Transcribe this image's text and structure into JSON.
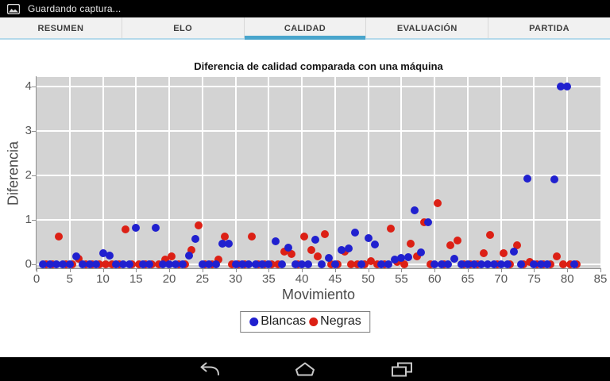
{
  "status_bar": {
    "text": "Guardando captura...",
    "icon": "screenshot-icon"
  },
  "tabs": [
    {
      "label": "RESUMEN",
      "active": false
    },
    {
      "label": "ELO",
      "active": false
    },
    {
      "label": "CALIDAD",
      "active": true
    },
    {
      "label": "EVALUACIÓN",
      "active": false
    },
    {
      "label": "PARTIDA",
      "active": false
    }
  ],
  "colors": {
    "active_tab_underline": "#49a5cc",
    "plot_background": "#d3d3d3",
    "gridline": "#ffffff",
    "blancas": "#2020cf",
    "negras": "#dc2015",
    "status_bar_bg": "#000000",
    "nav_icon": "#c8c8c8"
  },
  "chart_data": {
    "type": "scatter",
    "title": "Diferencia de calidad comparada con una máquina",
    "xlabel": "Movimiento",
    "ylabel": "Diferencia",
    "xlim": [
      0,
      85
    ],
    "ylim": [
      0,
      4.2
    ],
    "x_ticks": [
      0,
      5,
      10,
      15,
      20,
      25,
      30,
      35,
      40,
      45,
      50,
      55,
      60,
      65,
      70,
      75,
      80,
      85
    ],
    "y_ticks": [
      0,
      1,
      2,
      3,
      4
    ],
    "grid": true,
    "legend_position": "bottom-center",
    "moves_start": 1,
    "series": [
      {
        "name": "Blancas",
        "color": "#2020cf",
        "x_offset": 0,
        "values": [
          0,
          0,
          0,
          0,
          0,
          0.18,
          0,
          0,
          0,
          0.25,
          0.2,
          0,
          0,
          0,
          0.82,
          0,
          0,
          0.82,
          0,
          0,
          0,
          0,
          0.2,
          0.57,
          0,
          0,
          0,
          0.47,
          0.47,
          0,
          0,
          0,
          0,
          0,
          0,
          0.51,
          0,
          0.37,
          0,
          0,
          0,
          0.56,
          0,
          0.15,
          0,
          0.32,
          0.35,
          0.71,
          0,
          0.59,
          0.44,
          0,
          0,
          0.11,
          0.14,
          0.16,
          1.21,
          0.26,
          0.95,
          0,
          0,
          0,
          0.13,
          0,
          0,
          0,
          0,
          0,
          0,
          0,
          0,
          0.28,
          0,
          1.93,
          0,
          0,
          0,
          1.91,
          4,
          4,
          0
        ]
      },
      {
        "name": "Negras",
        "color": "#dc2015",
        "x_offset": 0.4,
        "values": [
          0,
          0,
          0.62,
          0,
          0,
          0.12,
          0,
          0,
          0,
          0,
          0,
          0,
          0.78,
          0,
          0,
          0,
          0,
          0,
          0.1,
          0.17,
          0,
          0,
          0.32,
          0.87,
          0,
          0,
          0.11,
          0.63,
          0,
          0,
          0,
          0.63,
          0,
          0,
          0,
          0,
          0.29,
          0.23,
          0,
          0.62,
          0.33,
          0.17,
          0.68,
          0,
          0,
          0.29,
          0,
          0,
          0,
          0.08,
          0,
          0,
          0.81,
          0.05,
          0,
          0.47,
          0.17,
          0.95,
          0,
          1.38,
          0,
          0.43,
          0.54,
          0,
          0,
          0,
          0.25,
          0.66,
          0,
          0.25,
          0,
          0.43,
          0,
          0.05,
          0,
          0,
          0,
          0.18,
          0,
          0,
          0
        ]
      }
    ]
  },
  "navigation_bar": {
    "icons": [
      "back",
      "home",
      "recents"
    ]
  }
}
